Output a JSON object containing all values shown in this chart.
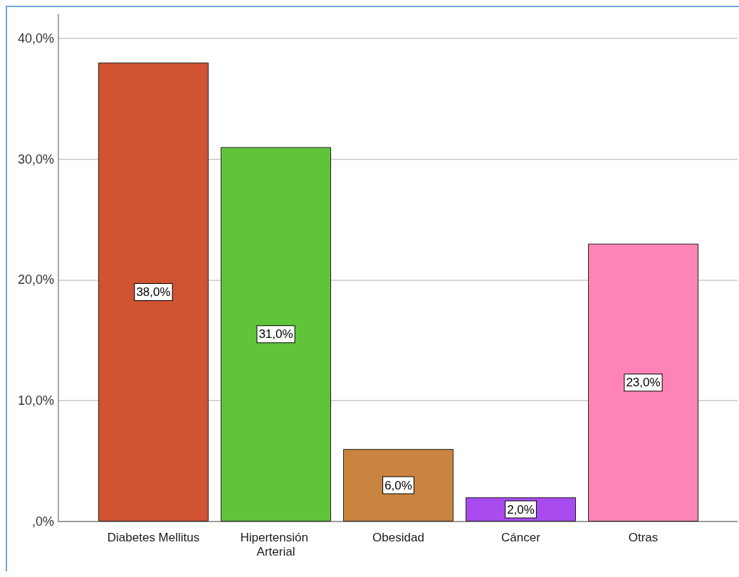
{
  "chart_data": {
    "type": "bar",
    "categories": [
      "Diabetes Mellitus",
      "Hipertensión Arterial",
      "Obesidad",
      "Cáncer",
      "Otras"
    ],
    "values": [
      38,
      31,
      6,
      2,
      23
    ],
    "colors": [
      "#d05332",
      "#5fc43a",
      "#c9843f",
      "#a84cf0",
      "#fd84b5"
    ],
    "value_labels": [
      "38,0%",
      "31,0%",
      "6,0%",
      "2,0%",
      "23,0%"
    ],
    "ylim": [
      0,
      42
    ],
    "yticks": [
      {
        "value": 0,
        "label": ",0%"
      },
      {
        "value": 10,
        "label": "10,0%"
      },
      {
        "value": 20,
        "label": "20,0%"
      },
      {
        "value": 30,
        "label": "30,0%"
      },
      {
        "value": 40,
        "label": "40,0%"
      }
    ],
    "grid": "y"
  }
}
